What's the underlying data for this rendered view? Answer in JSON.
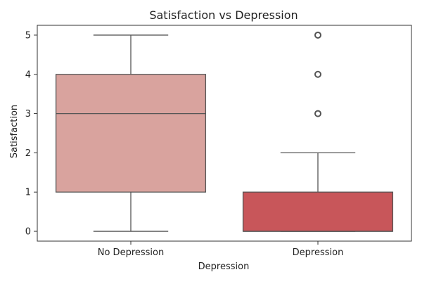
{
  "chart_data": {
    "type": "box",
    "title": "Satisfaction vs Depression",
    "xlabel": "Depression",
    "ylabel": "Satisfaction",
    "ylim": [
      -0.25,
      5.25
    ],
    "yticks": [
      0,
      1,
      2,
      3,
      4,
      5
    ],
    "categories": [
      "No Depression",
      "Depression"
    ],
    "boxes": [
      {
        "category": "No Depression",
        "whisker_low": 0,
        "q1": 1,
        "median": 3,
        "q3": 4,
        "whisker_high": 5,
        "outliers": [],
        "color": "#d9a39e"
      },
      {
        "category": "Depression",
        "whisker_low": 0,
        "q1": 0,
        "median": 0,
        "q3": 1,
        "whisker_high": 2,
        "outliers": [
          3,
          4,
          5
        ],
        "color": "#c8565a"
      }
    ],
    "grid": false,
    "legend": "none"
  },
  "colors": {
    "box_edge": "#555555",
    "axis": "#333333",
    "text": "#222222",
    "background": "#ffffff"
  }
}
